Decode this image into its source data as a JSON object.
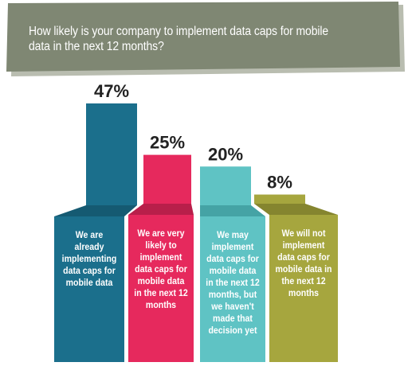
{
  "question": "How likely is your company to implement data caps for mobile data in the next 12 months?",
  "colors": {
    "banner": "#7f8773",
    "banner_shadow": "#b9bdb0",
    "bar_1": "#1b6f8c",
    "bar_1_dark": "#155a72",
    "bar_2": "#e6295d",
    "bar_2_dark": "#b81f4a",
    "bar_3": "#5fc3c4",
    "bar_3_dark": "#45a3a5",
    "bar_4": "#a6a63e",
    "bar_4_dark": "#85852f"
  },
  "chart_data": {
    "type": "bar",
    "title": "How likely is your company to implement data caps for mobile data in the next 12 months?",
    "categories": [
      "We are already implementing data caps for mobile data",
      "We are very likely to implement data caps for mobile data in the next 12 months",
      "We may implement data caps for mobile data in the next 12 months, but we haven't made that decision yet",
      "We will not implement data caps for mobile data in the next 12 months"
    ],
    "values": [
      47,
      25,
      20,
      8
    ],
    "value_labels": [
      "47%",
      "25%",
      "20%",
      "8%"
    ],
    "unit": "%",
    "ylim": [
      0,
      47
    ]
  }
}
